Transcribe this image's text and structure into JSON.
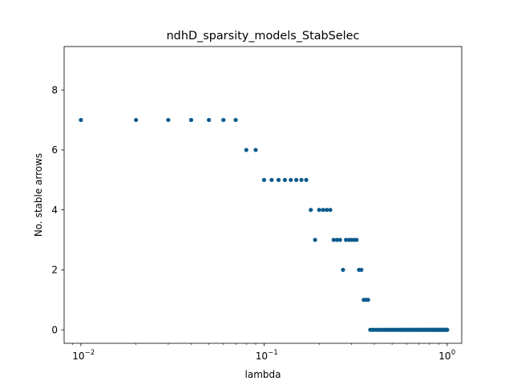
{
  "chart_data": {
    "type": "scatter",
    "title": "ndhD_sparsity_models_StabSelec",
    "xlabel": "lambda",
    "ylabel": "No. stable arrows",
    "xscale": "log",
    "xlim": [
      0.0081,
      1.2
    ],
    "ylim": [
      -0.45,
      9.45
    ],
    "grid": false,
    "marker_color": "#0a5a8c",
    "x_ticks": [
      {
        "base": "10",
        "exp": "−2",
        "value": 0.01
      },
      {
        "base": "10",
        "exp": "−1",
        "value": 0.1
      },
      {
        "base": "10",
        "exp": "0",
        "value": 1
      }
    ],
    "y_ticks": [
      0,
      2,
      4,
      6,
      8
    ],
    "series": [
      {
        "x": [
          0.01,
          0.02,
          0.03,
          0.04,
          0.05,
          0.06,
          0.07,
          0.08,
          0.09,
          0.1,
          0.11,
          0.12,
          0.13,
          0.14,
          0.15,
          0.16,
          0.17,
          0.18,
          0.19,
          0.2,
          0.21,
          0.22,
          0.23,
          0.24,
          0.25,
          0.26,
          0.27,
          0.28,
          0.29,
          0.3,
          0.31,
          0.32,
          0.33,
          0.34,
          0.35,
          0.36,
          0.37,
          0.38,
          0.39,
          0.4,
          0.41,
          0.42,
          0.43,
          0.44,
          0.45,
          0.46,
          0.47,
          0.48,
          0.49,
          0.5,
          0.51,
          0.52,
          0.53,
          0.54,
          0.55,
          0.56,
          0.57,
          0.58,
          0.59,
          0.6,
          0.61,
          0.62,
          0.63,
          0.64,
          0.65,
          0.66,
          0.67,
          0.68,
          0.69,
          0.7,
          0.71,
          0.72,
          0.73,
          0.74,
          0.75,
          0.76,
          0.77,
          0.78,
          0.79,
          0.8,
          0.81,
          0.82,
          0.83,
          0.84,
          0.85,
          0.86,
          0.87,
          0.88,
          0.89,
          0.9,
          0.91,
          0.92,
          0.93,
          0.94,
          0.95,
          0.96,
          0.97,
          0.98,
          0.99,
          1.0
        ],
        "y": [
          7,
          7,
          7,
          7,
          7,
          7,
          7,
          6,
          6,
          5,
          5,
          5,
          5,
          5,
          5,
          5,
          5,
          4,
          3,
          4,
          4,
          4,
          4,
          3,
          3,
          3,
          2,
          3,
          3,
          3,
          3,
          3,
          2,
          2,
          1,
          1,
          1,
          0,
          0,
          0,
          0,
          0,
          0,
          0,
          0,
          0,
          0,
          0,
          0,
          0,
          0,
          0,
          0,
          0,
          0,
          0,
          0,
          0,
          0,
          0,
          0,
          0,
          0,
          0,
          0,
          0,
          0,
          0,
          0,
          0,
          0,
          0,
          0,
          0,
          0,
          0,
          0,
          0,
          0,
          0,
          0,
          0,
          0,
          0,
          0,
          0,
          0,
          0,
          0,
          0,
          0,
          0,
          0,
          0,
          0,
          0,
          0,
          0,
          0,
          0
        ]
      }
    ]
  }
}
